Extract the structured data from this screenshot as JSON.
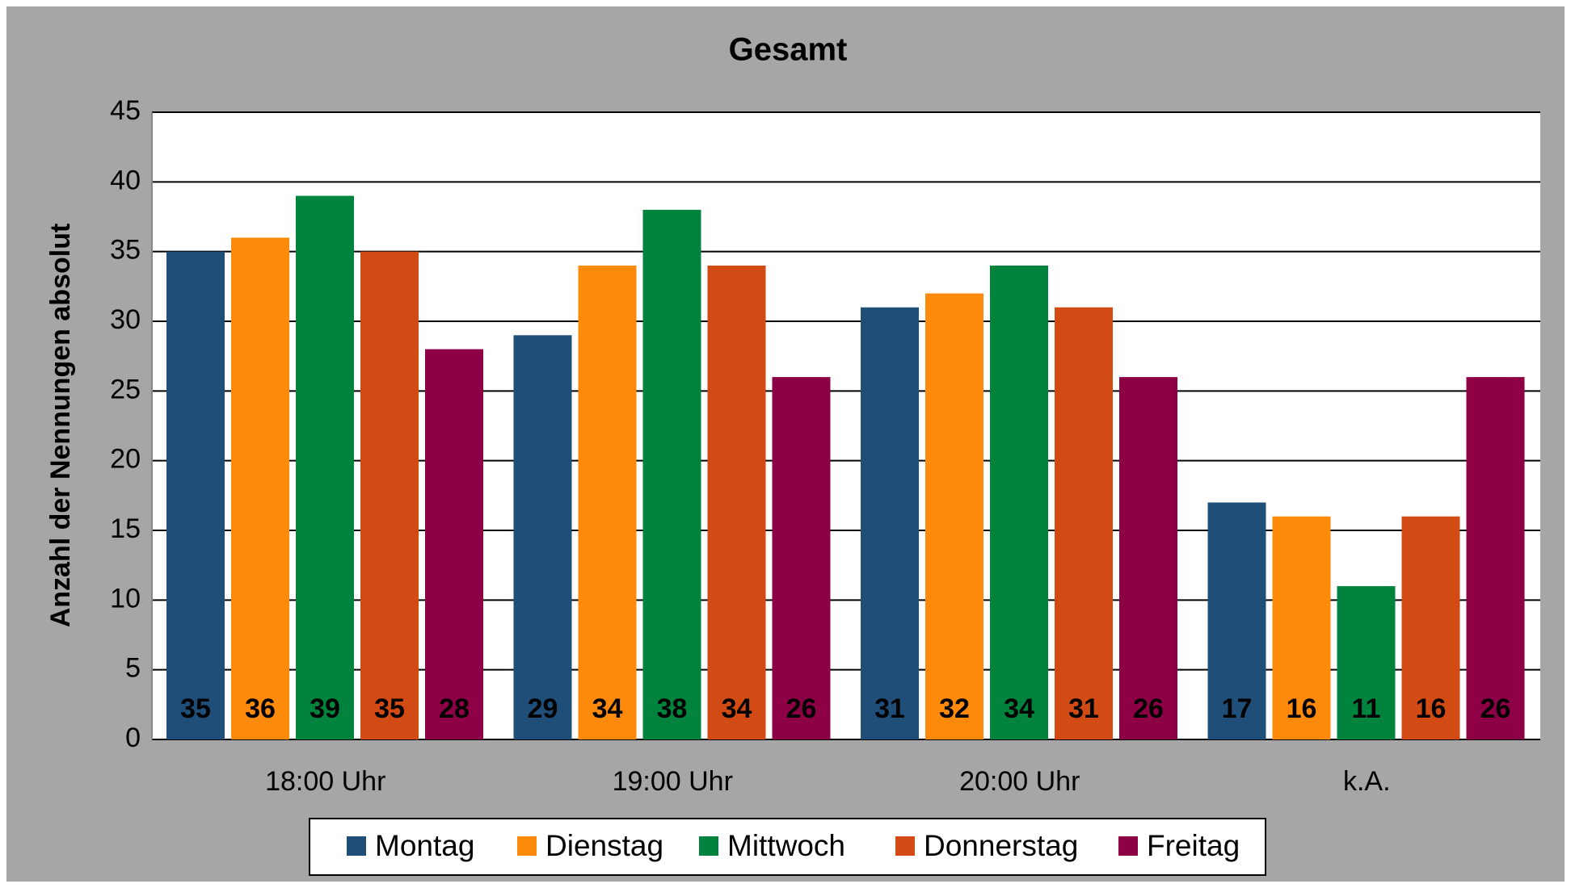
{
  "chart_data": {
    "type": "bar",
    "title": "Gesamt",
    "y_label": "Anzahl der Nennungen absolut",
    "categories": [
      "18:00 Uhr",
      "19:00 Uhr",
      "20:00 Uhr",
      "k.A."
    ],
    "series": [
      {
        "name": "Montag",
        "color": "#1f4e79",
        "values": [
          35,
          29,
          31,
          17
        ]
      },
      {
        "name": "Dienstag",
        "color": "#fd8a0a",
        "values": [
          36,
          34,
          32,
          16
        ]
      },
      {
        "name": "Mittwoch",
        "color": "#00843d",
        "values": [
          39,
          38,
          34,
          11
        ]
      },
      {
        "name": "Donnerstag",
        "color": "#d24a14",
        "values": [
          35,
          34,
          31,
          16
        ]
      },
      {
        "name": "Freitag",
        "color": "#8e0045",
        "values": [
          28,
          26,
          26,
          26
        ]
      }
    ],
    "ylim": [
      0,
      45
    ],
    "yticks": [
      0,
      5,
      10,
      15,
      20,
      25,
      30,
      35,
      40,
      45
    ],
    "grid": true,
    "legend": "bottom"
  }
}
